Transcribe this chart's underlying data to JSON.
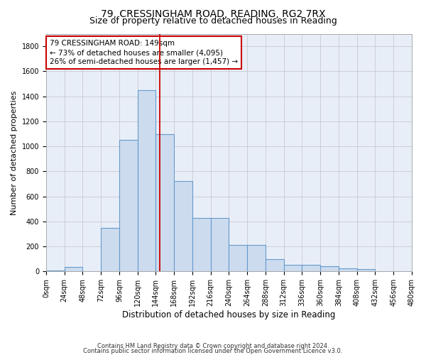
{
  "title1": "79, CRESSINGHAM ROAD, READING, RG2 7RX",
  "title2": "Size of property relative to detached houses in Reading",
  "xlabel": "Distribution of detached houses by size in Reading",
  "ylabel": "Number of detached properties",
  "bar_color": "#ccdcee",
  "bar_edge_color": "#6699cc",
  "annotation_box_text_line1": "79 CRESSINGHAM ROAD: 149sqm",
  "annotation_box_text_line2": "← 73% of detached houses are smaller (4,095)",
  "annotation_box_text_line3": "26% of semi-detached houses are larger (1,457) →",
  "vline_x": 149,
  "vline_color": "#cc0000",
  "footnote1": "Contains HM Land Registry data © Crown copyright and database right 2024.",
  "footnote2": "Contains public sector information licensed under the Open Government Licence v3.0.",
  "bin_edges": [
    0,
    24,
    48,
    72,
    96,
    120,
    144,
    168,
    192,
    216,
    240,
    264,
    288,
    312,
    336,
    360,
    384,
    408,
    432,
    456,
    480
  ],
  "counts": [
    10,
    35,
    0,
    350,
    1050,
    1450,
    1095,
    725,
    430,
    430,
    215,
    215,
    100,
    55,
    55,
    45,
    28,
    20,
    5,
    5
  ],
  "ylim": [
    0,
    1900
  ],
  "yticks": [
    0,
    200,
    400,
    600,
    800,
    1000,
    1200,
    1400,
    1600,
    1800
  ],
  "background_color": "#e8eef8",
  "grid_color": "#c8c8d0",
  "title1_fontsize": 10,
  "title2_fontsize": 9,
  "xlabel_fontsize": 8.5,
  "ylabel_fontsize": 8,
  "tick_fontsize": 7,
  "annot_fontsize": 7.5
}
